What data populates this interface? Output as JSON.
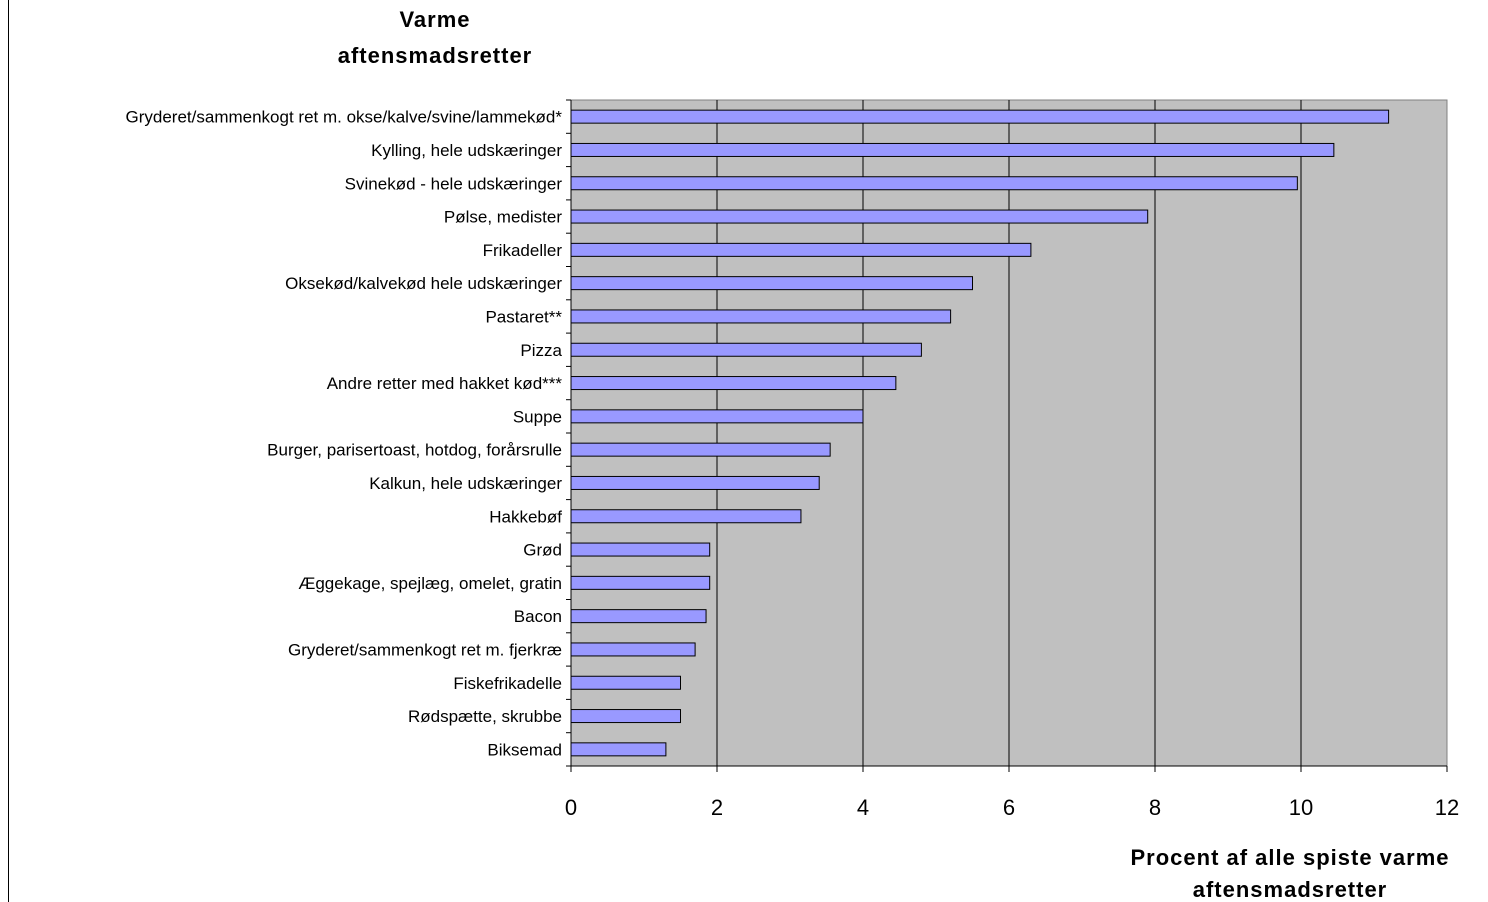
{
  "chart_data": {
    "type": "bar",
    "orientation": "horizontal",
    "title_lines": [
      "Varme",
      "aftensmadsretter"
    ],
    "xlabel_lines": [
      "Procent af alle spiste varme",
      "aftensmadsretter"
    ],
    "ylabel": "",
    "xlim": [
      0,
      12
    ],
    "x_ticks": [
      "0",
      "2",
      "4",
      "6",
      "8",
      "10",
      "12"
    ],
    "grid": "vertical",
    "categories": [
      "Gryderet/sammenkogt ret m. okse/kalve/svine/lammekød*",
      "Kylling, hele udskæringer",
      "Svinekød - hele udskæringer",
      "Pølse, medister",
      "Frikadeller",
      "Oksekød/kalvekød hele udskæringer",
      "Pastaret**",
      "Pizza",
      "Andre retter med hakket kød***",
      "Suppe",
      "Burger, parisertoast, hotdog, forårsrulle",
      "Kalkun, hele udskæringer",
      "Hakkebøf",
      "Grød",
      "Æggekage, spejlæg, omelet, gratin",
      "Bacon",
      "Gryderet/sammenkogt ret m. fjerkræ",
      "Fiskefrikadelle",
      "Rødspætte, skrubbe",
      "Biksemad"
    ],
    "values": [
      11.2,
      10.45,
      9.95,
      7.9,
      6.3,
      5.5,
      5.2,
      4.8,
      4.45,
      4.0,
      3.55,
      3.4,
      3.15,
      1.9,
      1.9,
      1.85,
      1.7,
      1.5,
      1.5,
      1.3
    ],
    "colors": {
      "bar_fill": "#9999ff",
      "bar_stroke": "#000000",
      "plot_background": "#c0c0c0",
      "gridline": "#000000"
    }
  }
}
